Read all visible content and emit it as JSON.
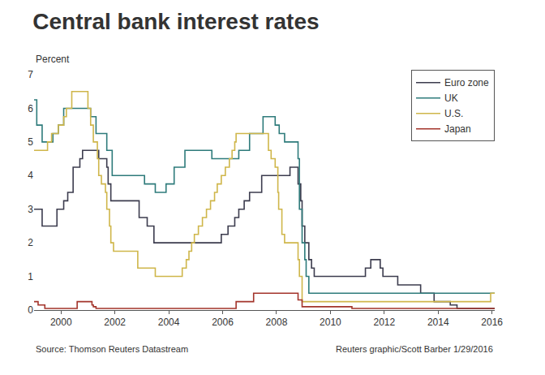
{
  "chart_data": {
    "type": "line",
    "title": "Central bank interest rates",
    "ylabel": "Percent",
    "annotations": [
      "Source: Thomson Reuters Datastream",
      "Reuters graphic/Scott Barber 1/29/2016"
    ],
    "xlim": [
      1999,
      2016.1
    ],
    "xticks": [
      2000,
      2002,
      2004,
      2006,
      2008,
      2010,
      2012,
      2014,
      2016
    ],
    "ylim": [
      0,
      7
    ],
    "yticks": [
      0,
      1,
      2,
      3,
      4,
      5,
      6,
      7
    ],
    "grid": false,
    "legend": "top-right",
    "line_style": "step",
    "series": [
      {
        "name": "Euro zone",
        "color": "#3c3c4e",
        "x": [
          1999.0,
          1999.3,
          1999.85,
          2000.1,
          2000.25,
          2000.45,
          2000.7,
          2000.8,
          2001.4,
          2001.7,
          2001.75,
          2001.85,
          2002.9,
          2003.2,
          2003.45,
          2005.95,
          2006.2,
          2006.45,
          2006.6,
          2006.8,
          2007.0,
          2007.45,
          2008.5,
          2008.8,
          2008.9,
          2008.95,
          2009.05,
          2009.2,
          2009.3,
          2009.4,
          2011.3,
          2011.5,
          2011.85,
          2011.95,
          2012.5,
          2013.35,
          2013.85,
          2014.45,
          2014.7,
          2016.1
        ],
        "values": [
          3.0,
          2.5,
          3.0,
          3.25,
          3.5,
          4.25,
          4.5,
          4.75,
          4.5,
          4.25,
          3.75,
          3.25,
          2.75,
          2.5,
          2.0,
          2.25,
          2.5,
          2.75,
          3.0,
          3.25,
          3.5,
          4.0,
          4.25,
          3.75,
          3.25,
          2.5,
          2.0,
          1.5,
          1.25,
          1.0,
          1.25,
          1.5,
          1.25,
          1.0,
          0.75,
          0.5,
          0.25,
          0.15,
          0.05,
          0.05
        ]
      },
      {
        "name": "UK",
        "color": "#2e7b7b",
        "x": [
          1999.0,
          1999.1,
          1999.3,
          1999.7,
          1999.9,
          2000.1,
          2001.1,
          2001.3,
          2001.7,
          2001.9,
          2003.1,
          2003.5,
          2003.9,
          2004.2,
          2004.6,
          2005.6,
          2006.6,
          2007.0,
          2007.5,
          2007.95,
          2008.1,
          2008.3,
          2008.8,
          2008.85,
          2008.95,
          2009.05,
          2009.1,
          2009.2,
          2016.1
        ],
        "values": [
          6.25,
          5.5,
          5.0,
          5.25,
          5.5,
          6.0,
          5.75,
          5.25,
          4.75,
          4.0,
          3.75,
          3.5,
          3.75,
          4.25,
          4.75,
          4.5,
          4.75,
          5.25,
          5.75,
          5.5,
          5.25,
          5.0,
          4.5,
          3.0,
          2.0,
          1.5,
          1.0,
          0.5,
          0.5
        ]
      },
      {
        "name": "U.S.",
        "color": "#cfb64a",
        "x": [
          1999.0,
          1999.5,
          1999.65,
          1999.9,
          2000.1,
          2000.2,
          2000.4,
          2001.0,
          2001.1,
          2001.2,
          2001.35,
          2001.4,
          2001.5,
          2001.65,
          2001.7,
          2001.8,
          2001.85,
          2001.95,
          2002.85,
          2003.5,
          2004.5,
          2004.65,
          2004.75,
          2004.85,
          2004.95,
          2005.1,
          2005.25,
          2005.4,
          2005.55,
          2005.7,
          2005.8,
          2005.95,
          2006.1,
          2006.25,
          2006.35,
          2006.45,
          2006.5,
          2007.7,
          2007.8,
          2007.95,
          2008.05,
          2008.08,
          2008.2,
          2008.3,
          2008.8,
          2008.85,
          2008.95,
          2015.95,
          2016.1
        ],
        "values": [
          4.75,
          5.0,
          5.25,
          5.5,
          5.75,
          6.0,
          6.5,
          6.0,
          5.5,
          5.0,
          4.5,
          4.0,
          3.75,
          3.5,
          3.0,
          2.5,
          2.0,
          1.75,
          1.25,
          1.0,
          1.25,
          1.5,
          1.75,
          2.0,
          2.25,
          2.5,
          2.75,
          3.0,
          3.25,
          3.5,
          3.75,
          4.0,
          4.25,
          4.5,
          4.75,
          5.0,
          5.25,
          4.75,
          4.5,
          4.25,
          3.5,
          3.0,
          2.25,
          2.0,
          1.5,
          1.0,
          0.25,
          0.5,
          0.5
        ]
      },
      {
        "name": "Japan",
        "color": "#a3342b",
        "x": [
          1999.0,
          1999.15,
          1999.4,
          2000.6,
          2001.15,
          2001.2,
          2001.3,
          2006.5,
          2007.15,
          2008.8,
          2008.95,
          2010.8,
          2016.1
        ],
        "values": [
          0.25,
          0.15,
          0.05,
          0.25,
          0.15,
          0.1,
          0.05,
          0.25,
          0.5,
          0.3,
          0.1,
          0.05,
          0.05
        ]
      }
    ]
  }
}
